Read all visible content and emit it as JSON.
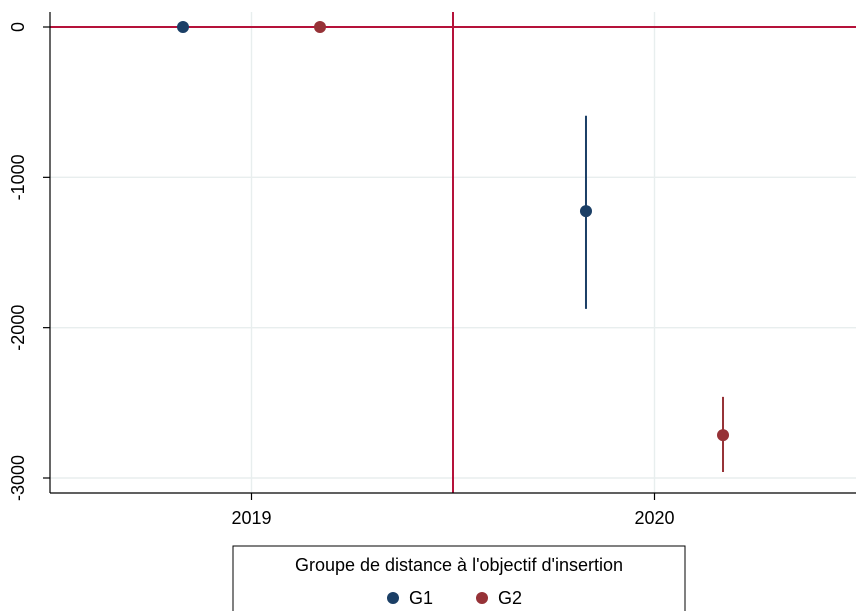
{
  "chart_data": {
    "type": "scatter",
    "title": "",
    "xlabel": "",
    "ylabel": "",
    "x_ticks": [
      "2019",
      "2020"
    ],
    "y_ticks": [
      0,
      -1000,
      -2000,
      -3000
    ],
    "y_tick_labels": [
      "0",
      "-1000",
      "-2000",
      "-3000"
    ],
    "ylim": [
      -3100,
      100
    ],
    "xlim": [
      2018.5,
      2020.5
    ],
    "grid": true,
    "reference_lines": {
      "horizontal_y": 0,
      "vertical_x": 2019.5,
      "color": "#b5123a"
    },
    "legend": {
      "title": "Groupe de distance à l'objectif d'insertion",
      "placement": "bottom-center",
      "entries": [
        {
          "label": "G1",
          "color": "#1b3f66"
        },
        {
          "label": "G2",
          "color": "#963237"
        }
      ]
    },
    "series": [
      {
        "name": "G1",
        "color": "#1b3f66",
        "points": [
          {
            "x": 2018.83,
            "y": 0,
            "ci_low": null,
            "ci_high": null
          },
          {
            "x": 2019.83,
            "y": -1225,
            "ci_low": -1875,
            "ci_high": -590
          }
        ]
      },
      {
        "name": "G2",
        "color": "#963237",
        "points": [
          {
            "x": 2019.17,
            "y": 0,
            "ci_low": null,
            "ci_high": null
          },
          {
            "x": 2020.17,
            "y": -2715,
            "ci_low": -2960,
            "ci_high": -2460
          }
        ]
      }
    ]
  }
}
